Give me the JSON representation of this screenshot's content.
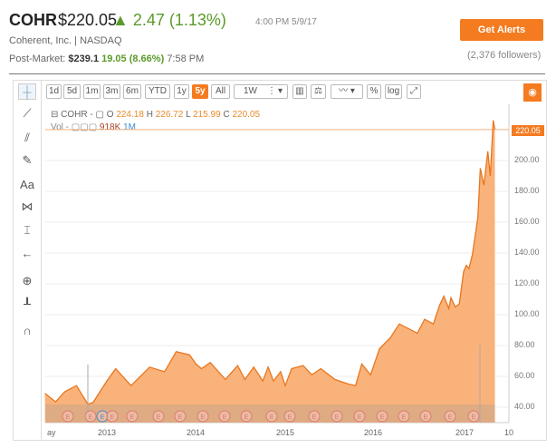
{
  "quote": {
    "ticker": "COHR",
    "price": "$220.05",
    "change": "▲ 2.47 (1.13%)",
    "time": "4:00 PM 5/9/17",
    "company": "Coherent, Inc.  |  NASDAQ",
    "post_label": "Post-Market:",
    "post_price": "$239.1",
    "post_change": "19.05 (8.66%)",
    "post_time": "7:58 PM",
    "up_color": "#5a9a2a"
  },
  "alerts": {
    "button": "Get Alerts",
    "followers": "(2,376 followers)"
  },
  "toolbar": {
    "ranges": [
      "1d",
      "5d",
      "1m",
      "3m",
      "6m",
      "YTD",
      "1y",
      "5y",
      "All"
    ],
    "active_range": "5y",
    "interval": "1W",
    "percent": "%",
    "log": "log",
    "accent": "#f47b20"
  },
  "left_tools": [
    "crosshair-icon",
    "trendline-icon",
    "fibonacci-icon",
    "brush-icon",
    "Aa",
    "pattern-icon",
    "measure-icon",
    "back-arrow-icon",
    "zoom-in-icon",
    "bar-tool-icon",
    "magnet-icon"
  ],
  "legend": {
    "symbol": "COHR -",
    "o_label": "O",
    "o": "224.18",
    "h_label": "H",
    "h": "226.72",
    "l_label": "L",
    "l": "215.99",
    "c_label": "C",
    "c": "220.05",
    "vol_label": "Vol -",
    "vol": "918K",
    "vol_period": "1M"
  },
  "chart_data": {
    "type": "area",
    "x_ticks": [
      "ay",
      "2013",
      "2014",
      "2015",
      "2016",
      "2017",
      "10"
    ],
    "y_ticks": [
      "40.00",
      "60.00",
      "80.00",
      "100.00",
      "120.00",
      "140.00",
      "160.00",
      "180.00",
      "200.00"
    ],
    "ylim": [
      29,
      234
    ],
    "last_price": "220.05",
    "earnings_marker": "E",
    "series": [
      [
        "2012-04-22",
        49
      ],
      [
        "2012-06-05",
        43.5
      ],
      [
        "2012-07-12",
        50
      ],
      [
        "2012-08-29",
        54
      ],
      [
        "2012-10-15",
        42
      ],
      [
        "2012-11-05",
        43
      ],
      [
        "2013-01-01",
        57
      ],
      [
        "2013-02-06",
        65
      ],
      [
        "2013-04-10",
        54
      ],
      [
        "2013-06-25",
        66
      ],
      [
        "2013-08-25",
        63
      ],
      [
        "2013-10-12",
        76
      ],
      [
        "2013-12-05",
        74
      ],
      [
        "2014-01-01",
        68
      ],
      [
        "2014-01-23",
        65
      ],
      [
        "2014-02-28",
        69
      ],
      [
        "2014-05-01",
        58
      ],
      [
        "2014-06-20",
        67
      ],
      [
        "2014-07-20",
        58
      ],
      [
        "2014-08-25",
        66
      ],
      [
        "2014-10-01",
        57
      ],
      [
        "2014-10-23",
        66
      ],
      [
        "2014-11-14",
        57
      ],
      [
        "2014-12-13",
        63
      ],
      [
        "2015-01-01",
        54
      ],
      [
        "2015-01-27",
        65
      ],
      [
        "2015-03-15",
        67
      ],
      [
        "2015-04-20",
        61
      ],
      [
        "2015-05-27",
        65
      ],
      [
        "2015-07-23",
        58
      ],
      [
        "2015-09-17",
        55
      ],
      [
        "2015-10-16",
        54
      ],
      [
        "2015-11-10",
        68
      ],
      [
        "2015-12-16",
        61
      ],
      [
        "2016-01-22",
        78
      ],
      [
        "2016-03-06",
        85
      ],
      [
        "2016-04-12",
        94
      ],
      [
        "2016-06-25",
        88
      ],
      [
        "2016-07-25",
        97
      ],
      [
        "2016-08-30",
        94
      ],
      [
        "2016-09-24",
        106
      ],
      [
        "2016-10-12",
        112
      ],
      [
        "2016-11-01",
        104
      ],
      [
        "2016-11-10",
        111
      ],
      [
        "2016-11-28",
        105
      ],
      [
        "2016-12-14",
        107
      ],
      [
        "2017-01-01",
        128
      ],
      [
        "2017-01-12",
        132
      ],
      [
        "2017-01-23",
        130
      ],
      [
        "2017-02-06",
        139
      ],
      [
        "2017-02-28",
        163
      ],
      [
        "2017-03-10",
        195
      ],
      [
        "2017-03-25",
        184
      ],
      [
        "2017-04-10",
        206
      ],
      [
        "2017-04-20",
        190
      ],
      [
        "2017-05-02",
        226
      ],
      [
        "2017-05-09",
        220.05
      ]
    ],
    "line_color": "#e8761e",
    "fill_color": "#f9b27a",
    "grid": true
  }
}
